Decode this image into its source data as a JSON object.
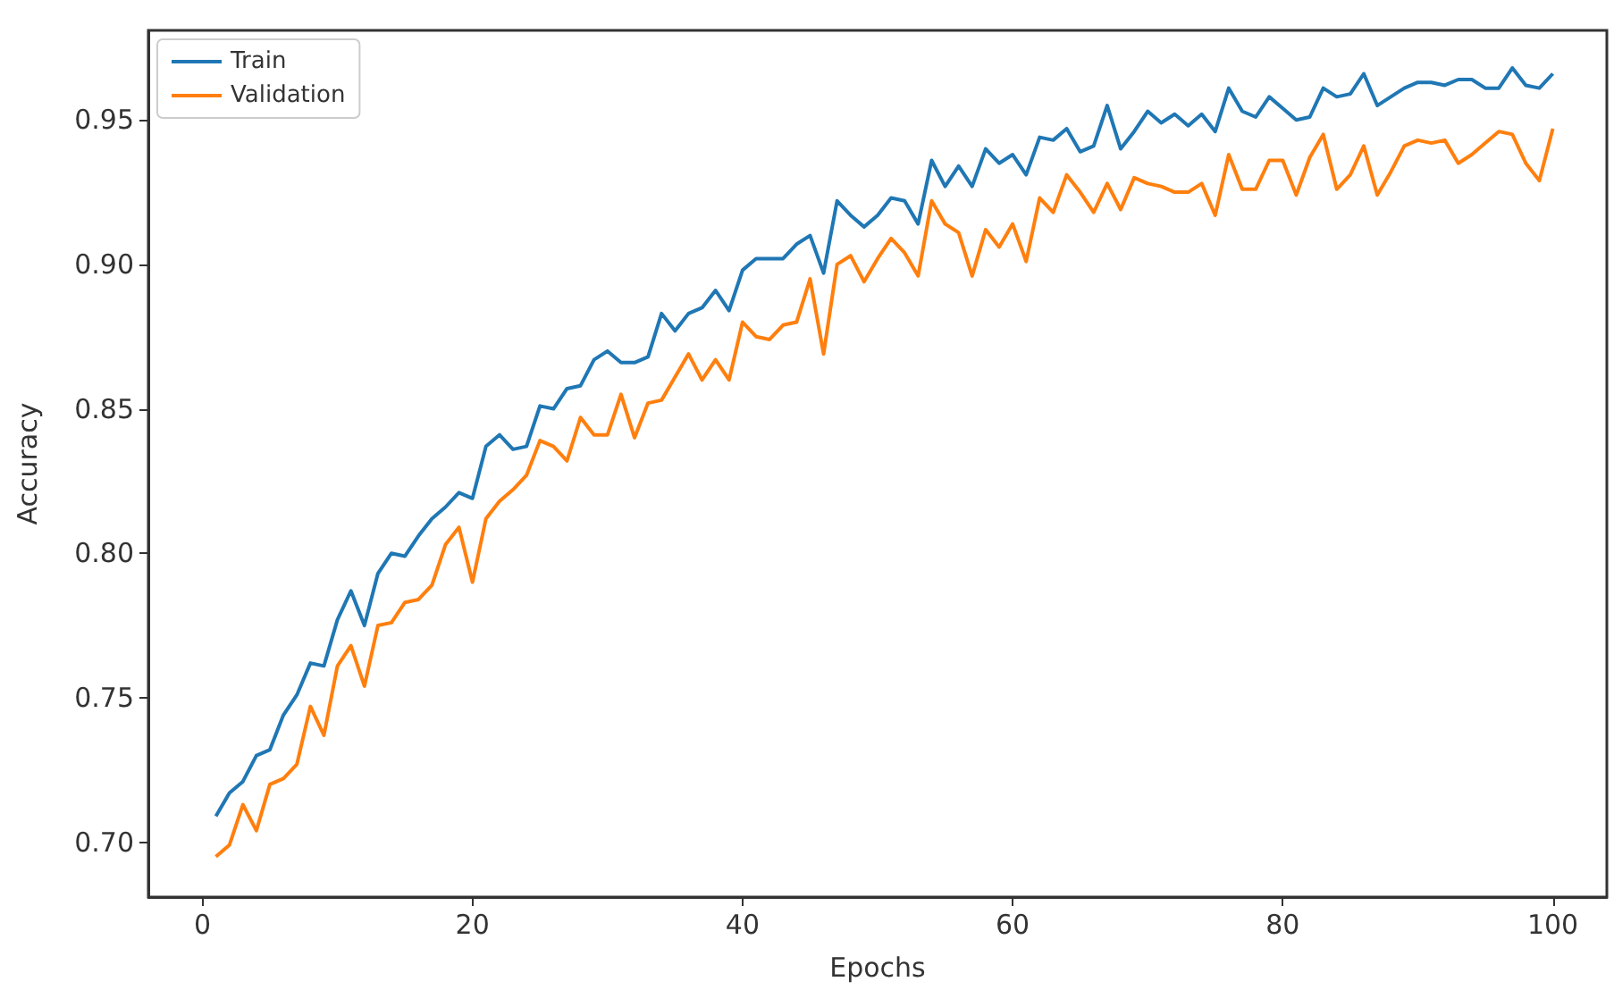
{
  "chart_data": {
    "type": "line",
    "xlabel": "Epochs",
    "ylabel": "Accuracy",
    "x": [
      1,
      2,
      3,
      4,
      5,
      6,
      7,
      8,
      9,
      10,
      11,
      12,
      13,
      14,
      15,
      16,
      17,
      18,
      19,
      20,
      21,
      22,
      23,
      24,
      25,
      26,
      27,
      28,
      29,
      30,
      31,
      32,
      33,
      34,
      35,
      36,
      37,
      38,
      39,
      40,
      41,
      42,
      43,
      44,
      45,
      46,
      47,
      48,
      49,
      50,
      51,
      52,
      53,
      54,
      55,
      56,
      57,
      58,
      59,
      60,
      61,
      62,
      63,
      64,
      65,
      66,
      67,
      68,
      69,
      70,
      71,
      72,
      73,
      74,
      75,
      76,
      77,
      78,
      79,
      80,
      81,
      82,
      83,
      84,
      85,
      86,
      87,
      88,
      89,
      90,
      91,
      92,
      93,
      94,
      95,
      96,
      97,
      98,
      99,
      100
    ],
    "series": [
      {
        "name": "Train",
        "color": "#1f77b4",
        "values": [
          0.709,
          0.717,
          0.721,
          0.73,
          0.732,
          0.744,
          0.751,
          0.762,
          0.761,
          0.777,
          0.787,
          0.775,
          0.793,
          0.8,
          0.799,
          0.806,
          0.812,
          0.816,
          0.821,
          0.819,
          0.837,
          0.841,
          0.836,
          0.837,
          0.851,
          0.85,
          0.857,
          0.858,
          0.867,
          0.87,
          0.866,
          0.866,
          0.868,
          0.883,
          0.877,
          0.883,
          0.885,
          0.891,
          0.884,
          0.898,
          0.902,
          0.902,
          0.902,
          0.907,
          0.91,
          0.897,
          0.922,
          0.917,
          0.913,
          0.917,
          0.923,
          0.922,
          0.914,
          0.936,
          0.927,
          0.934,
          0.927,
          0.94,
          0.935,
          0.938,
          0.931,
          0.944,
          0.943,
          0.947,
          0.939,
          0.941,
          0.955,
          0.94,
          0.946,
          0.953,
          0.949,
          0.952,
          0.948,
          0.952,
          0.946,
          0.961,
          0.953,
          0.951,
          0.958,
          0.954,
          0.95,
          0.951,
          0.961,
          0.958,
          0.959,
          0.966,
          0.955,
          0.958,
          0.961,
          0.963,
          0.963,
          0.962,
          0.964,
          0.964,
          0.961,
          0.961,
          0.968,
          0.962,
          0.961,
          0.966
        ]
      },
      {
        "name": "Validation",
        "color": "#ff7f0e",
        "values": [
          0.695,
          0.699,
          0.713,
          0.704,
          0.72,
          0.722,
          0.727,
          0.747,
          0.737,
          0.761,
          0.768,
          0.754,
          0.775,
          0.776,
          0.783,
          0.784,
          0.789,
          0.803,
          0.809,
          0.79,
          0.812,
          0.818,
          0.822,
          0.827,
          0.839,
          0.837,
          0.832,
          0.847,
          0.841,
          0.841,
          0.855,
          0.84,
          0.852,
          0.853,
          0.861,
          0.869,
          0.86,
          0.867,
          0.86,
          0.88,
          0.875,
          0.874,
          0.879,
          0.88,
          0.895,
          0.869,
          0.9,
          0.903,
          0.894,
          0.902,
          0.909,
          0.904,
          0.896,
          0.922,
          0.914,
          0.911,
          0.896,
          0.912,
          0.906,
          0.914,
          0.901,
          0.923,
          0.918,
          0.931,
          0.925,
          0.918,
          0.928,
          0.919,
          0.93,
          0.928,
          0.927,
          0.925,
          0.925,
          0.928,
          0.917,
          0.938,
          0.926,
          0.926,
          0.936,
          0.936,
          0.924,
          0.937,
          0.945,
          0.926,
          0.931,
          0.941,
          0.924,
          0.932,
          0.941,
          0.943,
          0.942,
          0.943,
          0.935,
          0.938,
          0.942,
          0.946,
          0.945,
          0.935,
          0.929,
          0.947
        ]
      }
    ],
    "xlim": [
      -4,
      104
    ],
    "xticks": [
      0,
      20,
      40,
      60,
      80,
      100
    ],
    "ylim": [
      0.681,
      0.981
    ],
    "yticks": [
      {
        "value": 0.7,
        "label": "0.70"
      },
      {
        "value": 0.75,
        "label": "0.75"
      },
      {
        "value": 0.8,
        "label": "0.80"
      },
      {
        "value": 0.85,
        "label": "0.85"
      },
      {
        "value": 0.9,
        "label": "0.90"
      },
      {
        "value": 0.95,
        "label": "0.95"
      }
    ],
    "grid": false,
    "legend": "top left",
    "marker": "none",
    "line_style": "solid"
  }
}
